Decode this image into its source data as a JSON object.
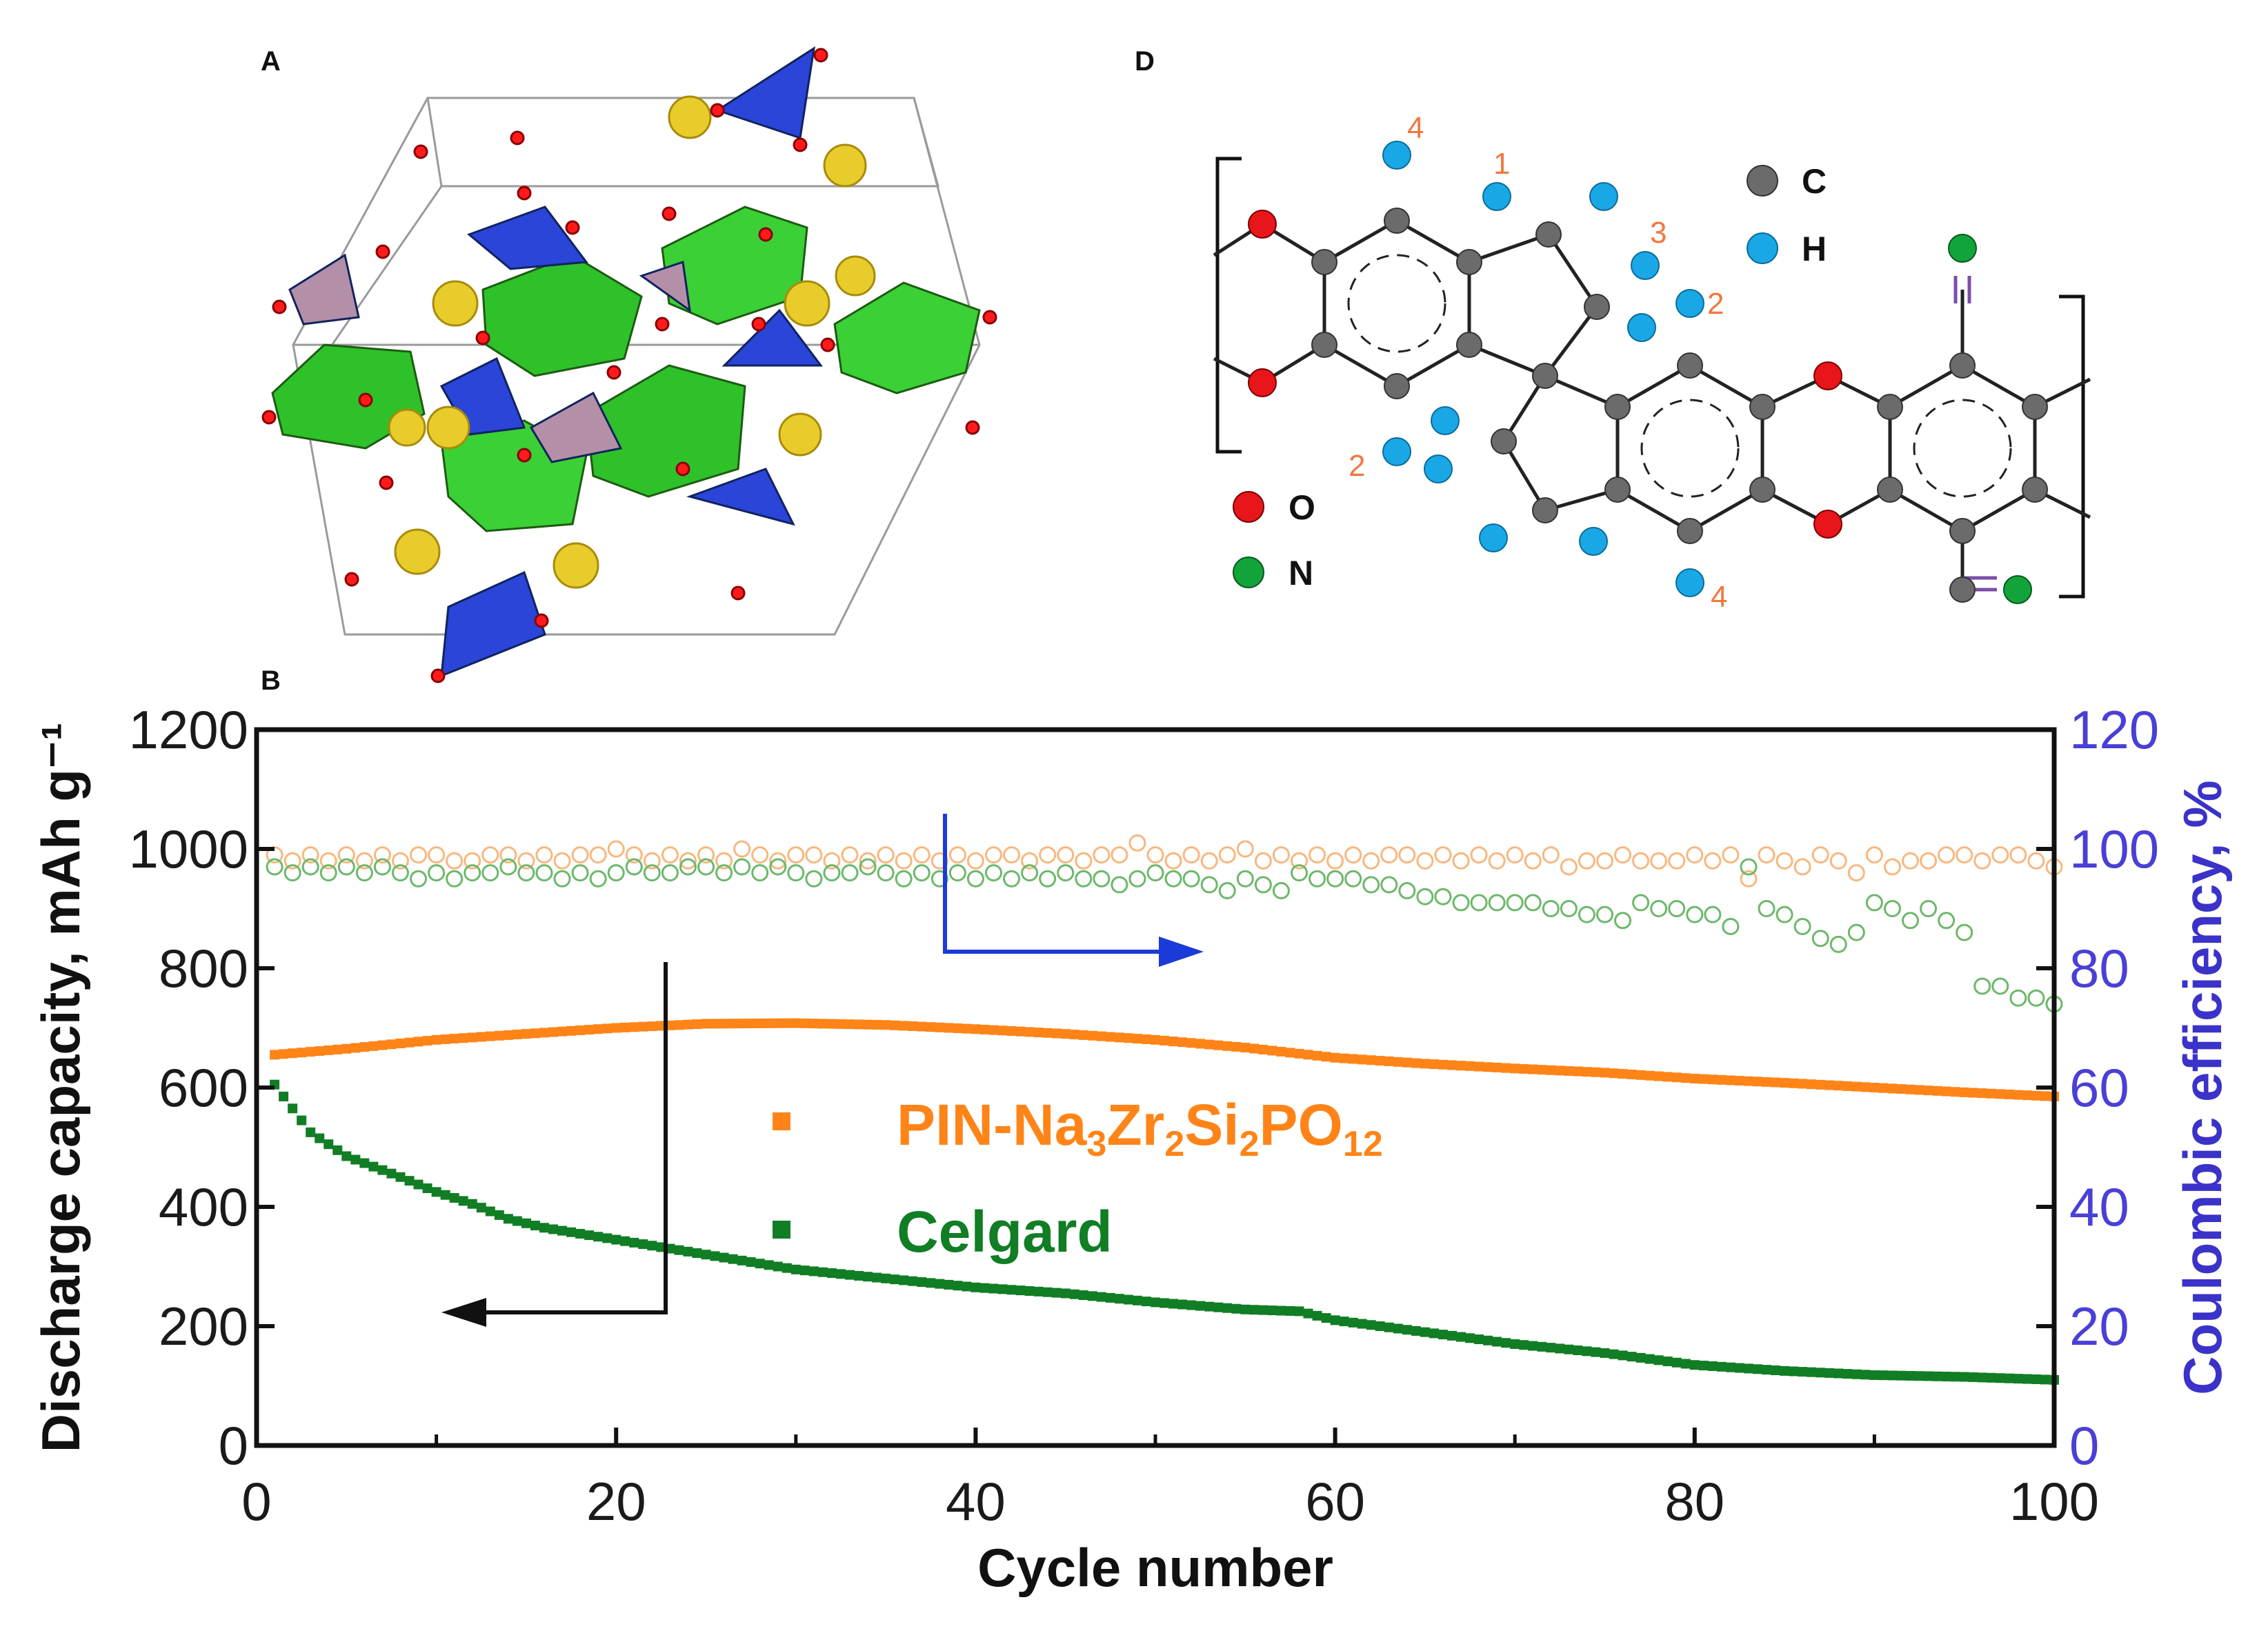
{
  "panels": {
    "a_label": "A",
    "d_label": "D",
    "b_label": "B"
  },
  "molecule": {
    "legend": [
      {
        "symbol": "C",
        "color": "#6b6b6b"
      },
      {
        "symbol": "H",
        "color": "#1aa7e6"
      },
      {
        "symbol": "O",
        "color": "#e8161b"
      },
      {
        "symbol": "N",
        "color": "#12a43a"
      }
    ],
    "hydrogen_labels": [
      "4",
      "1",
      "3",
      "2",
      "2",
      "4"
    ]
  },
  "chart_data": {
    "type": "scatter",
    "xlabel": "Cycle number",
    "ylabel": "Discharge capacity, mAh g⁻¹",
    "y2label": "Coulombic efficiency, %",
    "xlim": [
      0,
      100
    ],
    "ylim": [
      0,
      1200
    ],
    "y2lim": [
      0,
      120
    ],
    "xticks": [
      "0",
      "20",
      "40",
      "60",
      "80",
      "100"
    ],
    "yticks": [
      "0",
      "200",
      "400",
      "600",
      "800",
      "1000",
      "1200"
    ],
    "y2ticks": [
      "0",
      "20",
      "40",
      "60",
      "80",
      "100",
      "120"
    ],
    "legend": {
      "pin_prefix": "PIN-Na",
      "pin_sub1": "3",
      "pin_mid1": "Zr",
      "pin_sub2": "2",
      "pin_mid2": "Si",
      "pin_sub3": "2",
      "pin_mid3": "PO",
      "pin_sub4": "12",
      "celgard": "Celgard"
    },
    "series": [
      {
        "name": "PIN-Na3Zr2Si2PO12 capacity",
        "axis": "left",
        "color": "#ff8418",
        "marker": "square",
        "curve": [
          [
            1,
            655
          ],
          [
            5,
            665
          ],
          [
            10,
            680
          ],
          [
            15,
            690
          ],
          [
            20,
            700
          ],
          [
            25,
            707
          ],
          [
            30,
            708
          ],
          [
            35,
            705
          ],
          [
            40,
            698
          ],
          [
            45,
            690
          ],
          [
            50,
            680
          ],
          [
            55,
            667
          ],
          [
            60,
            650
          ],
          [
            65,
            640
          ],
          [
            70,
            632
          ],
          [
            75,
            625
          ],
          [
            80,
            615
          ],
          [
            85,
            608
          ],
          [
            90,
            600
          ],
          [
            95,
            592
          ],
          [
            100,
            585
          ]
        ]
      },
      {
        "name": "Celgard capacity",
        "axis": "left",
        "color": "#117d24",
        "marker": "square",
        "curve": [
          [
            1,
            605
          ],
          [
            2,
            565
          ],
          [
            3,
            525
          ],
          [
            5,
            485
          ],
          [
            8,
            450
          ],
          [
            10,
            425
          ],
          [
            12,
            405
          ],
          [
            14,
            380
          ],
          [
            16,
            365
          ],
          [
            20,
            345
          ],
          [
            25,
            320
          ],
          [
            30,
            295
          ],
          [
            35,
            280
          ],
          [
            40,
            265
          ],
          [
            45,
            255
          ],
          [
            50,
            240
          ],
          [
            55,
            228
          ],
          [
            58,
            225
          ],
          [
            60,
            210
          ],
          [
            65,
            190
          ],
          [
            70,
            170
          ],
          [
            75,
            155
          ],
          [
            80,
            135
          ],
          [
            85,
            125
          ],
          [
            90,
            118
          ],
          [
            95,
            115
          ],
          [
            100,
            110
          ]
        ]
      },
      {
        "name": "PIN-Na3Zr2Si2PO12 efficiency",
        "axis": "right",
        "color": "#f8b77f",
        "marker": "open-circle",
        "values": [
          99,
          98,
          99,
          98,
          99,
          98,
          99,
          98,
          99,
          99,
          98,
          98,
          99,
          99,
          98,
          99,
          98,
          99,
          99,
          100,
          99,
          98,
          99,
          98,
          99,
          98,
          100,
          99,
          98,
          99,
          99,
          98,
          99,
          98,
          99,
          98,
          99,
          98,
          99,
          98,
          99,
          99,
          98,
          99,
          99,
          98,
          99,
          99,
          101,
          99,
          98,
          99,
          98,
          99,
          100,
          98,
          99,
          98,
          99,
          98,
          99,
          98,
          99,
          99,
          98,
          99,
          98,
          99,
          98,
          99,
          98,
          99,
          97,
          98,
          98,
          99,
          98,
          98,
          98,
          99,
          98,
          99,
          95,
          99,
          98,
          97,
          99,
          98,
          96,
          99,
          97,
          98,
          98,
          99,
          99,
          98,
          99,
          99,
          98,
          97
        ]
      },
      {
        "name": "Celgard efficiency",
        "axis": "right",
        "color": "#6cb86a",
        "marker": "open-circle",
        "values": [
          97,
          96,
          97,
          96,
          97,
          96,
          97,
          96,
          95,
          96,
          95,
          96,
          96,
          97,
          96,
          96,
          95,
          96,
          95,
          96,
          97,
          96,
          96,
          97,
          97,
          96,
          97,
          96,
          97,
          96,
          95,
          96,
          96,
          97,
          96,
          95,
          96,
          95,
          96,
          95,
          96,
          95,
          96,
          95,
          96,
          95,
          95,
          94,
          95,
          96,
          95,
          95,
          94,
          93,
          95,
          94,
          93,
          96,
          95,
          95,
          95,
          94,
          94,
          93,
          92,
          92,
          91,
          91,
          91,
          91,
          91,
          90,
          90,
          89,
          89,
          88,
          91,
          90,
          90,
          89,
          89,
          87,
          97,
          90,
          89,
          87,
          85,
          84,
          86,
          91,
          90,
          88,
          90,
          88,
          86,
          77,
          77,
          75,
          75,
          74
        ]
      }
    ]
  }
}
